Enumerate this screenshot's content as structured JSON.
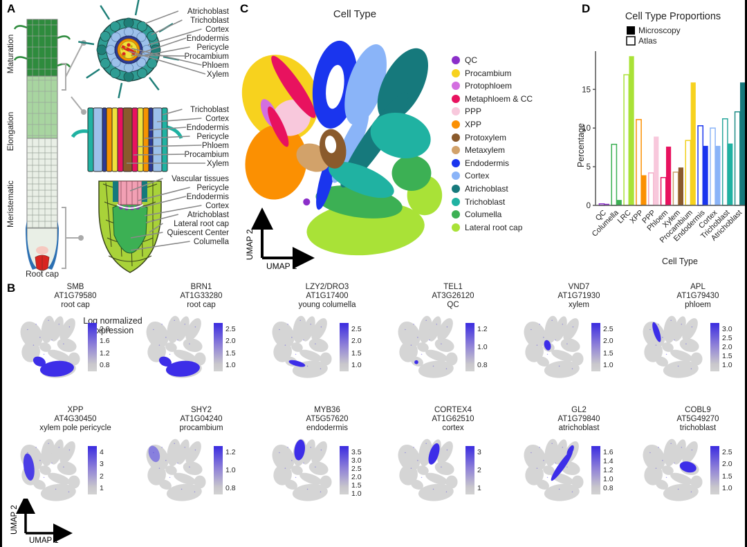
{
  "panel_a": {
    "label": "A",
    "zones": [
      "Maturation",
      "Elongation",
      "Meristematic"
    ],
    "root_cap_label": "Root cap",
    "cross_section_labels": [
      "Atrichoblast",
      "Trichoblast",
      "Cortex",
      "Endodermis",
      "Pericycle",
      "Procambium",
      "Phloem",
      "Xylem"
    ],
    "longitudinal_labels": [
      "Trichoblast",
      "Cortex",
      "Endodermis",
      "Pericycle",
      "Phloem",
      "Procambium",
      "Xylem"
    ],
    "root_tip_labels": [
      "Vascular tissues",
      "Pericycle",
      "Endodermis",
      "Cortex",
      "Atrichoblast",
      "Lateral root cap",
      "Quiescent Center",
      "Columella"
    ]
  },
  "panel_b": {
    "label": "B",
    "colorbar_title": "Log normalized expression",
    "umap_x": "UMAP 1",
    "umap_y": "UMAP 2",
    "plots": [
      {
        "gene": "SMB",
        "id": "AT1G79580",
        "tissue": "root cap",
        "ticks": [
          "2.0",
          "1.6",
          "1.2",
          "0.8"
        ],
        "highlight": "rootcap"
      },
      {
        "gene": "BRN1",
        "id": "AT1G33280",
        "tissue": "root cap",
        "ticks": [
          "2.5",
          "2.0",
          "1.5",
          "1.0"
        ],
        "highlight": "rootcap"
      },
      {
        "gene": "LZY2/DRO3",
        "id": "AT1G17400",
        "tissue": "young columella",
        "ticks": [
          "2.5",
          "2.0",
          "1.5",
          "1.0"
        ],
        "highlight": "youngcol"
      },
      {
        "gene": "TEL1",
        "id": "AT3G26120",
        "tissue": "QC",
        "ticks": [
          "1.2",
          "1.0",
          "0.8"
        ],
        "highlight": "qc"
      },
      {
        "gene": "VND7",
        "id": "AT1G71930",
        "tissue": "xylem",
        "ticks": [
          "2.5",
          "2.0",
          "1.5",
          "1.0"
        ],
        "highlight": "xylem"
      },
      {
        "gene": "APL",
        "id": "AT1G79430",
        "tissue": "phloem",
        "ticks": [
          "3.0",
          "2.5",
          "2.0",
          "1.5",
          "1.0"
        ],
        "highlight": "phloem"
      },
      {
        "gene": "XPP",
        "id": "AT4G30450",
        "tissue": "xylem pole pericycle",
        "ticks": [
          "4",
          "3",
          "2",
          "1"
        ],
        "highlight": "xpp"
      },
      {
        "gene": "SHY2",
        "id": "AT1G04240",
        "tissue": "procambium",
        "ticks": [
          "1.2",
          "1.0",
          "0.8"
        ],
        "highlight": "procamb"
      },
      {
        "gene": "MYB36",
        "id": "AT5G57620",
        "tissue": "endodermis",
        "ticks": [
          "3.5",
          "3.0",
          "2.5",
          "2.0",
          "1.5",
          "1.0"
        ],
        "highlight": "endo"
      },
      {
        "gene": "CORTEX4",
        "id": "AT1G62510",
        "tissue": "cortex",
        "ticks": [
          "3",
          "2",
          "1"
        ],
        "highlight": "cortex"
      },
      {
        "gene": "GL2",
        "id": "AT1G79840",
        "tissue": "atrichoblast",
        "ticks": [
          "1.6",
          "1.4",
          "1.2",
          "1.0",
          "0.8"
        ],
        "highlight": "atricho"
      },
      {
        "gene": "COBL9",
        "id": "AT5G49270",
        "tissue": "trichoblast",
        "ticks": [
          "2.5",
          "2.0",
          "1.5",
          "1.0"
        ],
        "highlight": "tricho"
      }
    ]
  },
  "panel_c": {
    "label": "C",
    "title": "Cell Type",
    "umap_x": "UMAP 1",
    "umap_y": "UMAP 2",
    "legend": [
      {
        "label": "QC",
        "color": "#8b2fc9"
      },
      {
        "label": "Procambium",
        "color": "#f7d21e"
      },
      {
        "label": "Protophloem",
        "color": "#d36fe0"
      },
      {
        "label": "Metaphloem & CC",
        "color": "#e8125f"
      },
      {
        "label": "PPP",
        "color": "#f8c8dc"
      },
      {
        "label": "XPP",
        "color": "#fb9002"
      },
      {
        "label": "Protoxylem",
        "color": "#8a5a2c"
      },
      {
        "label": "Metaxylem",
        "color": "#d2a26a"
      },
      {
        "label": "Endodermis",
        "color": "#1a35ee"
      },
      {
        "label": "Cortex",
        "color": "#8ab4f8"
      },
      {
        "label": "Atrichoblast",
        "color": "#16797c"
      },
      {
        "label": "Trichoblast",
        "color": "#20b2a2"
      },
      {
        "label": "Columella",
        "color": "#3cb054"
      },
      {
        "label": "Lateral root cap",
        "color": "#a9e237"
      }
    ]
  },
  "panel_d": {
    "label": "D",
    "title": "Cell Type Proportions",
    "legend": {
      "microscopy": "Microscopy",
      "atlas": "Atlas"
    },
    "xlabel": "Cell Type",
    "ylabel": "Percentage"
  },
  "chart_data": {
    "type": "bar",
    "title": "Cell Type Proportions",
    "xlabel": "Cell Type",
    "ylabel": "Percentage",
    "ylim": [
      0,
      19.5
    ],
    "yticks": [
      0,
      5,
      10,
      15
    ],
    "legend_position": "top",
    "categories": [
      "QC",
      "Columella",
      "LRC",
      "XPP",
      "PPP",
      "Phloem",
      "Xylem",
      "Procambium",
      "Endodermis",
      "Cortex",
      "Trichoblast",
      "Atrichoblast"
    ],
    "series": [
      {
        "name": "Atlas",
        "style": "outline",
        "values": [
          0.2,
          7.9,
          16.9,
          11.1,
          4.2,
          3.6,
          4.3,
          8.4,
          10.3,
          10.0,
          11.2,
          12.1
        ]
      },
      {
        "name": "Microscopy",
        "style": "filled",
        "values": [
          0.2,
          0.7,
          19.3,
          3.9,
          8.9,
          7.6,
          4.9,
          15.9,
          7.7,
          7.7,
          8.0,
          15.9
        ]
      }
    ],
    "category_colors": [
      "#8b2fc9",
      "#3cb054",
      "#a9e237",
      "#fb9002",
      "#f8c8dc",
      "#e8125f",
      "#8a5a2c",
      "#f7d21e",
      "#1a35ee",
      "#8ab4f8",
      "#20b2a2",
      "#16797c"
    ],
    "category_outline_colors": [
      "#8b2fc9",
      "#3cb054",
      "#a9e237",
      "#fb9002",
      "#f3a8c5",
      "#e8125f",
      "#c9a06a",
      "#f0cf1c",
      "#1a35ee",
      "#8ab4f8",
      "#2aa79c",
      "#1d8c86"
    ]
  }
}
